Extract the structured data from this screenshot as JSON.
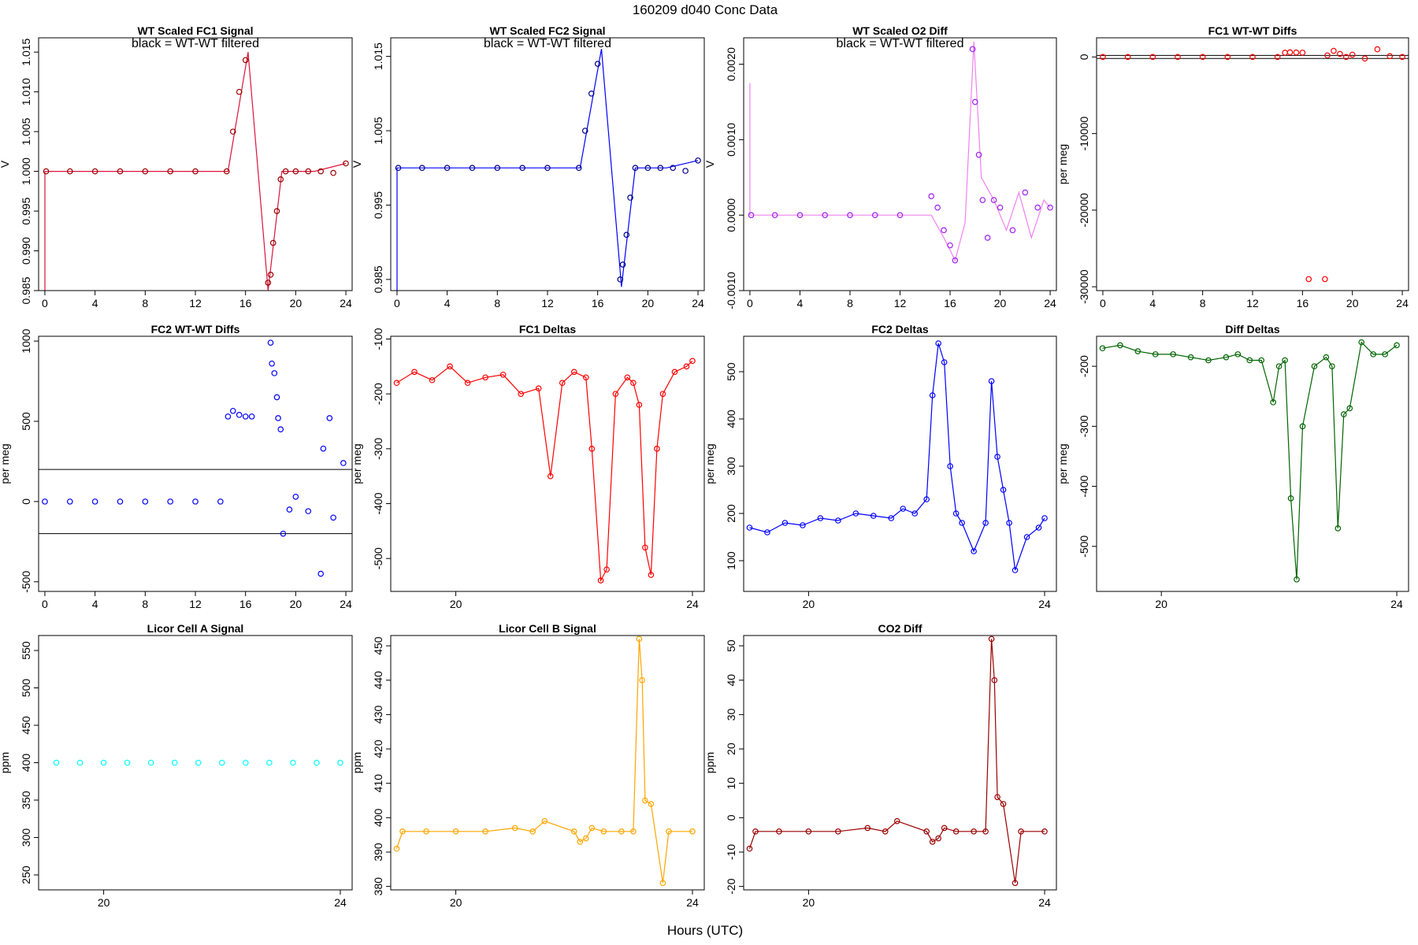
{
  "figure": {
    "title": "160209   d040   Conc Data",
    "xlabel": "Hours (UTC)"
  },
  "chart_data": [
    {
      "type": "scatter",
      "title": "WT Scaled FC1 Signal",
      "annotation": "black = WT-WT filtered",
      "ylabel": "V",
      "xlabel": "",
      "xlim": [
        -0.5,
        24.5
      ],
      "ylim": [
        0.985,
        1.0168
      ],
      "xticks": [
        0,
        4,
        8,
        12,
        16,
        20,
        24
      ],
      "yticks": [
        0.985,
        0.99,
        0.995,
        1.0,
        1.005,
        1.01,
        1.015
      ],
      "ytick_labels": [
        "0.985",
        "0.990",
        "0.995",
        "1.000",
        "1.005",
        "1.010",
        "1.015"
      ],
      "grid": false,
      "colors": {
        "series": "#990000",
        "line": "#dc143c",
        "filtered": "#000000"
      },
      "series": [
        {
          "kind": "segments",
          "x": [
            0,
            0,
            14.6,
            16.2,
            17.8,
            18.9,
            21.5,
            24
          ],
          "y": [
            0.985,
            1.0,
            1.0,
            1.015,
            0.985,
            1.0,
            1.0,
            1.001
          ]
        },
        {
          "kind": "points",
          "x": [
            0.1,
            2,
            4,
            6,
            8,
            10,
            12,
            14.5,
            15.0,
            15.5,
            16.0,
            17.8,
            18.0,
            18.2,
            18.5,
            18.8,
            19.2,
            20,
            21,
            22,
            23,
            24
          ],
          "y": [
            1.0,
            1.0,
            1.0,
            1.0,
            1.0,
            1.0,
            1.0,
            1.0,
            1.005,
            1.01,
            1.014,
            0.986,
            0.987,
            0.991,
            0.995,
            0.999,
            1.0,
            1.0,
            1.0,
            1.0,
            0.9998,
            1.001
          ]
        }
      ]
    },
    {
      "type": "scatter",
      "title": "WT Scaled FC2 Signal",
      "annotation": "black = WT-WT filtered",
      "ylabel": "V",
      "xlim": [
        -0.5,
        24.5
      ],
      "ylim": [
        0.9835,
        1.0175
      ],
      "xticks": [
        0,
        4,
        8,
        12,
        16,
        20,
        24
      ],
      "yticks": [
        0.985,
        0.995,
        1.005,
        1.015
      ],
      "ytick_labels": [
        "0.985",
        "0.995",
        "1.005",
        "1.015"
      ],
      "grid": false,
      "colors": {
        "series": "#00008b",
        "line": "#0000ff"
      },
      "series": [
        {
          "kind": "segments",
          "x": [
            0,
            0,
            14.6,
            16.3,
            17.9,
            19.0,
            21.5,
            24
          ],
          "y": [
            0.9835,
            1.0,
            1.0,
            1.016,
            0.984,
            1.0,
            1.0,
            1.001
          ]
        },
        {
          "kind": "points",
          "x": [
            0.1,
            2,
            4,
            6,
            8,
            10,
            12,
            14.5,
            15.0,
            15.5,
            16.0,
            17.8,
            18.0,
            18.3,
            18.6,
            19.0,
            20,
            21,
            22,
            23,
            24
          ],
          "y": [
            1.0,
            1.0,
            1.0,
            1.0,
            1.0,
            1.0,
            1.0,
            1.0,
            1.005,
            1.01,
            1.014,
            0.985,
            0.987,
            0.991,
            0.996,
            1.0,
            1.0,
            1.0,
            1.0,
            0.9996,
            1.001
          ]
        }
      ]
    },
    {
      "type": "scatter",
      "title": "WT Scaled O2 Diff",
      "annotation": "black = WT-WT filtered",
      "ylabel": "V",
      "xlim": [
        -0.5,
        24.5
      ],
      "ylim": [
        -0.001,
        0.00235
      ],
      "xticks": [
        0,
        4,
        8,
        12,
        16,
        20,
        24
      ],
      "yticks": [
        -0.001,
        0.0,
        0.001,
        0.002
      ],
      "ytick_labels": [
        "-0.0010",
        "0.0000",
        "0.0010",
        "0.0020"
      ],
      "grid": false,
      "colors": {
        "series": "#a020f0",
        "line": "#ee82ee"
      },
      "series": [
        {
          "kind": "segments",
          "x": [
            0,
            0,
            14.5,
            15.5,
            16.4,
            17.2,
            17.9,
            18.5,
            19.5,
            20.5,
            21.5,
            22.5,
            23.5,
            24
          ],
          "y": [
            0.00175,
            0.0,
            0.0,
            -0.0003,
            -0.0006,
            -0.0001,
            0.0023,
            0.0005,
            0.0002,
            -0.0002,
            0.0003,
            -0.0003,
            0.0002,
            0.0001
          ]
        },
        {
          "kind": "points",
          "x": [
            0.1,
            2,
            4,
            6,
            8,
            10,
            12,
            14.5,
            15.0,
            15.5,
            16.0,
            16.4,
            17.8,
            18.0,
            18.3,
            18.6,
            19.0,
            19.5,
            20,
            21,
            22,
            23,
            24
          ],
          "y": [
            0.0,
            0.0,
            0.0,
            0.0,
            0.0,
            0.0,
            0.0,
            0.00025,
            0.0001,
            -0.0002,
            -0.0004,
            -0.0006,
            0.0022,
            0.0015,
            0.0008,
            0.0002,
            -0.0003,
            0.0002,
            0.0001,
            -0.0002,
            0.0003,
            0.0001,
            0.0001
          ]
        }
      ]
    },
    {
      "type": "scatter",
      "title": "FC1 WT-WT Diffs",
      "ylabel": "per meg",
      "xlim": [
        -0.5,
        24.5
      ],
      "ylim": [
        -30500,
        2500
      ],
      "xticks": [
        0,
        4,
        8,
        12,
        16,
        20,
        24
      ],
      "yticks": [
        -30000,
        -20000,
        -10000,
        0
      ],
      "ytick_labels": [
        "-30000",
        "-20000",
        "-10000",
        "0"
      ],
      "hlines": [
        200,
        -200
      ],
      "grid": false,
      "colors": {
        "series": "#ff0000"
      },
      "series": [
        {
          "kind": "points",
          "x": [
            0,
            2,
            4,
            6,
            8,
            10,
            12,
            14,
            14.6,
            15.0,
            15.5,
            16.0,
            16.5,
            17.8,
            18.0,
            18.5,
            19.0,
            19.5,
            20,
            21,
            22,
            23,
            24
          ],
          "y": [
            0,
            0,
            0,
            0,
            0,
            0,
            0,
            0,
            550,
            600,
            580,
            560,
            -29000,
            -29000,
            200,
            800,
            400,
            0,
            300,
            -200,
            1000,
            100,
            0
          ]
        }
      ]
    },
    {
      "type": "scatter",
      "title": "FC2 WT-WT Diffs",
      "ylabel": "per meg",
      "xlim": [
        -0.5,
        24.5
      ],
      "ylim": [
        -560,
        1030
      ],
      "xticks": [
        0,
        4,
        8,
        12,
        16,
        20,
        24
      ],
      "yticks": [
        -500,
        0,
        500,
        1000
      ],
      "ytick_labels": [
        "-500",
        "0",
        "500",
        "1000"
      ],
      "hlines": [
        200,
        -200
      ],
      "grid": false,
      "colors": {
        "series": "#0000ff"
      },
      "series": [
        {
          "kind": "points",
          "x": [
            0,
            2,
            4,
            6,
            8,
            10,
            12,
            14,
            14.6,
            15.0,
            15.5,
            16.0,
            16.5,
            18.0,
            18.1,
            18.3,
            18.5,
            18.6,
            18.8,
            19.0,
            19.5,
            20,
            21,
            22,
            22.2,
            22.7,
            23,
            23.8
          ],
          "y": [
            0,
            0,
            0,
            0,
            0,
            0,
            0,
            0,
            530,
            565,
            540,
            530,
            530,
            990,
            860,
            800,
            650,
            520,
            450,
            -200,
            -50,
            30,
            -60,
            -450,
            330,
            520,
            -100,
            240
          ]
        }
      ]
    },
    {
      "type": "line",
      "title": "FC1 Deltas",
      "ylabel": "per meg",
      "xlim": [
        18.9,
        24.2
      ],
      "ylim": [
        -560,
        -95
      ],
      "xticks": [
        20,
        24
      ],
      "yticks": [
        -500,
        -400,
        -300,
        -200,
        -100
      ],
      "ytick_labels": [
        "-500",
        "-400",
        "-300",
        "-200",
        "-100"
      ],
      "grid": false,
      "colors": {
        "series": "#ff0000"
      },
      "series": [
        {
          "kind": "line",
          "x": [
            19.0,
            19.3,
            19.6,
            19.9,
            20.2,
            20.5,
            20.8,
            21.1,
            21.4,
            21.6,
            21.8,
            22.0,
            22.2,
            22.3,
            22.45,
            22.55,
            22.7,
            22.9,
            23.0,
            23.1,
            23.2,
            23.3,
            23.4,
            23.5,
            23.7,
            23.9,
            24.0
          ],
          "y": [
            -180,
            -160,
            -175,
            -150,
            -180,
            -170,
            -165,
            -200,
            -190,
            -350,
            -180,
            -160,
            -170,
            -300,
            -540,
            -520,
            -200,
            -170,
            -180,
            -220,
            -480,
            -530,
            -300,
            -200,
            -160,
            -150,
            -140
          ]
        }
      ]
    },
    {
      "type": "line",
      "title": "FC2 Deltas",
      "ylabel": "per meg",
      "xlim": [
        18.9,
        24.2
      ],
      "ylim": [
        35,
        575
      ],
      "xticks": [
        20,
        24
      ],
      "yticks": [
        100,
        200,
        300,
        400,
        500
      ],
      "ytick_labels": [
        "100",
        "200",
        "300",
        "400",
        "500"
      ],
      "grid": false,
      "colors": {
        "series": "#0000ff"
      },
      "series": [
        {
          "kind": "line",
          "x": [
            19.0,
            19.3,
            19.6,
            19.9,
            20.2,
            20.5,
            20.8,
            21.1,
            21.4,
            21.6,
            21.8,
            22.0,
            22.1,
            22.2,
            22.3,
            22.4,
            22.5,
            22.6,
            22.8,
            23.0,
            23.1,
            23.2,
            23.3,
            23.4,
            23.5,
            23.7,
            23.9,
            24.0
          ],
          "y": [
            170,
            160,
            180,
            175,
            190,
            185,
            200,
            195,
            190,
            210,
            200,
            230,
            450,
            560,
            520,
            300,
            200,
            180,
            120,
            180,
            480,
            320,
            250,
            180,
            80,
            150,
            170,
            190
          ]
        }
      ]
    },
    {
      "type": "line",
      "title": "Diff Deltas",
      "ylabel": "per meg",
      "xlim": [
        18.9,
        24.2
      ],
      "ylim": [
        -575,
        -150
      ],
      "xticks": [
        20,
        24
      ],
      "yticks": [
        -500,
        -400,
        -300,
        -200
      ],
      "ytick_labels": [
        "-500",
        "-400",
        "-300",
        "-200"
      ],
      "grid": false,
      "colors": {
        "series": "#006400"
      },
      "series": [
        {
          "kind": "line",
          "x": [
            19.0,
            19.3,
            19.6,
            19.9,
            20.2,
            20.5,
            20.8,
            21.1,
            21.3,
            21.5,
            21.7,
            21.9,
            22.0,
            22.1,
            22.2,
            22.3,
            22.4,
            22.6,
            22.8,
            22.9,
            23.0,
            23.1,
            23.2,
            23.4,
            23.6,
            23.8,
            24.0
          ],
          "y": [
            -170,
            -165,
            -175,
            -180,
            -180,
            -185,
            -190,
            -185,
            -180,
            -190,
            -190,
            -260,
            -200,
            -190,
            -420,
            -555,
            -300,
            -200,
            -185,
            -200,
            -470,
            -280,
            -270,
            -160,
            -180,
            -180,
            -165
          ]
        }
      ]
    },
    {
      "type": "scatter",
      "title": "Licor Cell A Signal",
      "ylabel": "ppm",
      "xlim": [
        18.9,
        24.2
      ],
      "ylim": [
        230,
        570
      ],
      "xticks": [
        20,
        24
      ],
      "yticks": [
        250,
        300,
        350,
        400,
        450,
        500,
        550
      ],
      "ytick_labels": [
        "250",
        "300",
        "350",
        "400",
        "450",
        "500",
        "550"
      ],
      "grid": false,
      "colors": {
        "series": "#00ffff"
      },
      "series": [
        {
          "kind": "points",
          "x": [
            19.2,
            19.6,
            20.0,
            20.4,
            20.8,
            21.2,
            21.6,
            22.0,
            22.4,
            22.8,
            23.2,
            23.6,
            24.0
          ],
          "y": [
            400,
            400,
            400,
            400,
            400,
            400,
            400,
            400,
            400,
            400,
            400,
            400,
            400
          ]
        }
      ]
    },
    {
      "type": "line",
      "title": "Licor Cell B Signal",
      "ylabel": "ppm",
      "xlim": [
        18.9,
        24.2
      ],
      "ylim": [
        379,
        453
      ],
      "xticks": [
        20,
        24
      ],
      "yticks": [
        380,
        390,
        400,
        410,
        420,
        430,
        440,
        450
      ],
      "ytick_labels": [
        "380",
        "390",
        "400",
        "410",
        "420",
        "430",
        "440",
        "450"
      ],
      "grid": false,
      "colors": {
        "series": "#ffa500"
      },
      "series": [
        {
          "kind": "line",
          "x": [
            19.0,
            19.1,
            19.5,
            20.0,
            20.5,
            21.0,
            21.3,
            21.5,
            22.0,
            22.1,
            22.2,
            22.3,
            22.5,
            22.8,
            23.0,
            23.1,
            23.15,
            23.2,
            23.3,
            23.5,
            23.6,
            24.0
          ],
          "y": [
            391,
            396,
            396,
            396,
            396,
            397,
            396,
            399,
            396,
            393,
            394,
            397,
            396,
            396,
            396,
            452,
            440,
            405,
            404,
            381,
            396,
            396
          ]
        }
      ]
    },
    {
      "type": "line",
      "title": "CO2 Diff",
      "ylabel": "ppm",
      "xlim": [
        18.9,
        24.2
      ],
      "ylim": [
        -21,
        53
      ],
      "xticks": [
        20,
        24
      ],
      "yticks": [
        -20,
        -10,
        0,
        10,
        20,
        30,
        40,
        50
      ],
      "ytick_labels": [
        "-20",
        "-10",
        "0",
        "10",
        "20",
        "30",
        "40",
        "50"
      ],
      "grid": false,
      "colors": {
        "series": "#990000"
      },
      "series": [
        {
          "kind": "line",
          "x": [
            19.0,
            19.1,
            19.5,
            20.0,
            20.5,
            21.0,
            21.3,
            21.5,
            22.0,
            22.1,
            22.2,
            22.3,
            22.5,
            22.8,
            23.0,
            23.1,
            23.15,
            23.2,
            23.3,
            23.5,
            23.6,
            24.0
          ],
          "y": [
            -9,
            -4,
            -4,
            -4,
            -4,
            -3,
            -4,
            -1,
            -4,
            -7,
            -6,
            -3,
            -4,
            -4,
            -4,
            52,
            40,
            6,
            4,
            -19,
            -4,
            -4
          ]
        }
      ]
    }
  ]
}
